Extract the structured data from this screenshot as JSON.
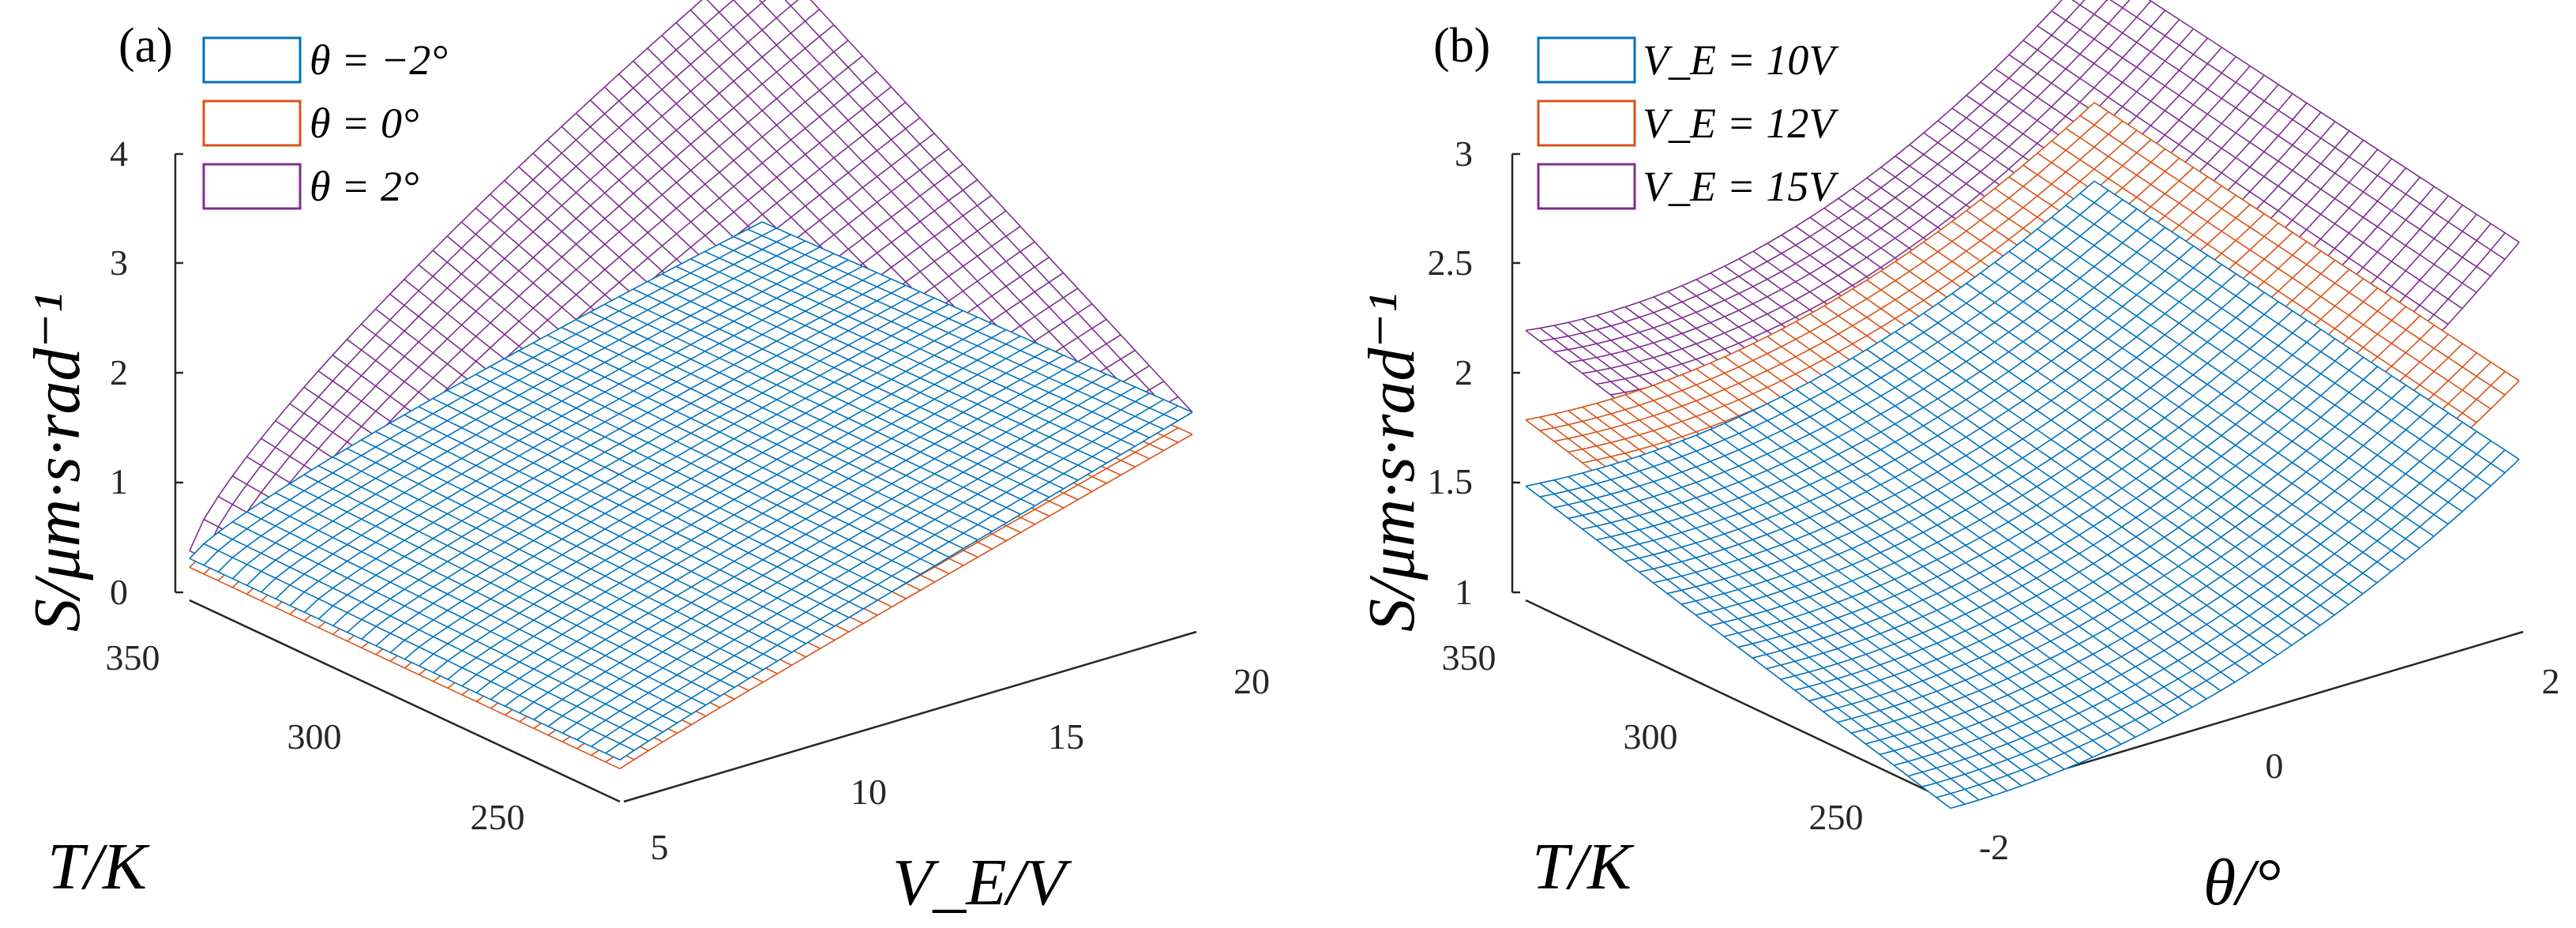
{
  "chart_data": [
    {
      "panel_label": "(a)",
      "type": "surface",
      "title": "",
      "xlabel": "V_E/V",
      "ylabel": "T/K",
      "zlabel": "S/μm·s·rad⁻¹",
      "x_ticks": [
        "5",
        "10",
        "15",
        "20"
      ],
      "y_ticks": [
        "250",
        "300",
        "350"
      ],
      "z_ticks": [
        "0",
        "1",
        "2",
        "3",
        "4"
      ],
      "x_range": [
        5,
        20
      ],
      "y_range": [
        240,
        360
      ],
      "z_range": [
        0,
        4
      ],
      "legend": {
        "position": "top-left",
        "entries": [
          "θ = −2°",
          "θ = 0°",
          "θ = 2°"
        ]
      },
      "series": [
        {
          "name": "θ = −2°",
          "color": "#0072BD",
          "corner_values": {
            "Vmin_Tmax": 0.38,
            "Vmin_Tmin": 0.38,
            "Vmax_Tmin": 2.0,
            "Vmax_Tmax": 1.9
          }
        },
        {
          "name": "θ = 0°",
          "color": "#D95319",
          "corner_values": {
            "Vmin_Tmax": 0.3,
            "Vmin_Tmin": 0.3,
            "Vmax_Tmin": 1.8,
            "Vmax_Tmax": 1.7
          }
        },
        {
          "name": "θ = 2°",
          "color": "#7E2F8E",
          "corner_values": {
            "Vmin_Tmax": 0.45,
            "Vmin_Tmin": 0.45,
            "Vmax_Tmin": 2.0,
            "Vmax_Tmax": 4.4
          }
        }
      ]
    },
    {
      "panel_label": "(b)",
      "type": "surface",
      "title": "",
      "xlabel": "θ/°",
      "ylabel": "T/K",
      "zlabel": "S/μm·s·rad⁻¹",
      "x_ticks": [
        "-2",
        "0",
        "2"
      ],
      "y_ticks": [
        "250",
        "300",
        "350"
      ],
      "z_ticks": [
        "1",
        "1.5",
        "2",
        "2.5",
        "3"
      ],
      "x_range": [
        -2,
        2
      ],
      "y_range": [
        240,
        360
      ],
      "z_range": [
        1,
        3
      ],
      "legend": {
        "position": "top-left",
        "entries": [
          "V_E = 10V",
          "V_E = 12V",
          "V_E = 15V"
        ]
      },
      "series": [
        {
          "name": "V_E = 10V",
          "color": "#0072BD",
          "corner_values": {
            "note": ""
          }
        },
        {
          "name": "V_E = 12V",
          "color": "#D95319"
        },
        {
          "name": "V_E = 15V",
          "color": "#7E2F8E"
        }
      ]
    }
  ]
}
